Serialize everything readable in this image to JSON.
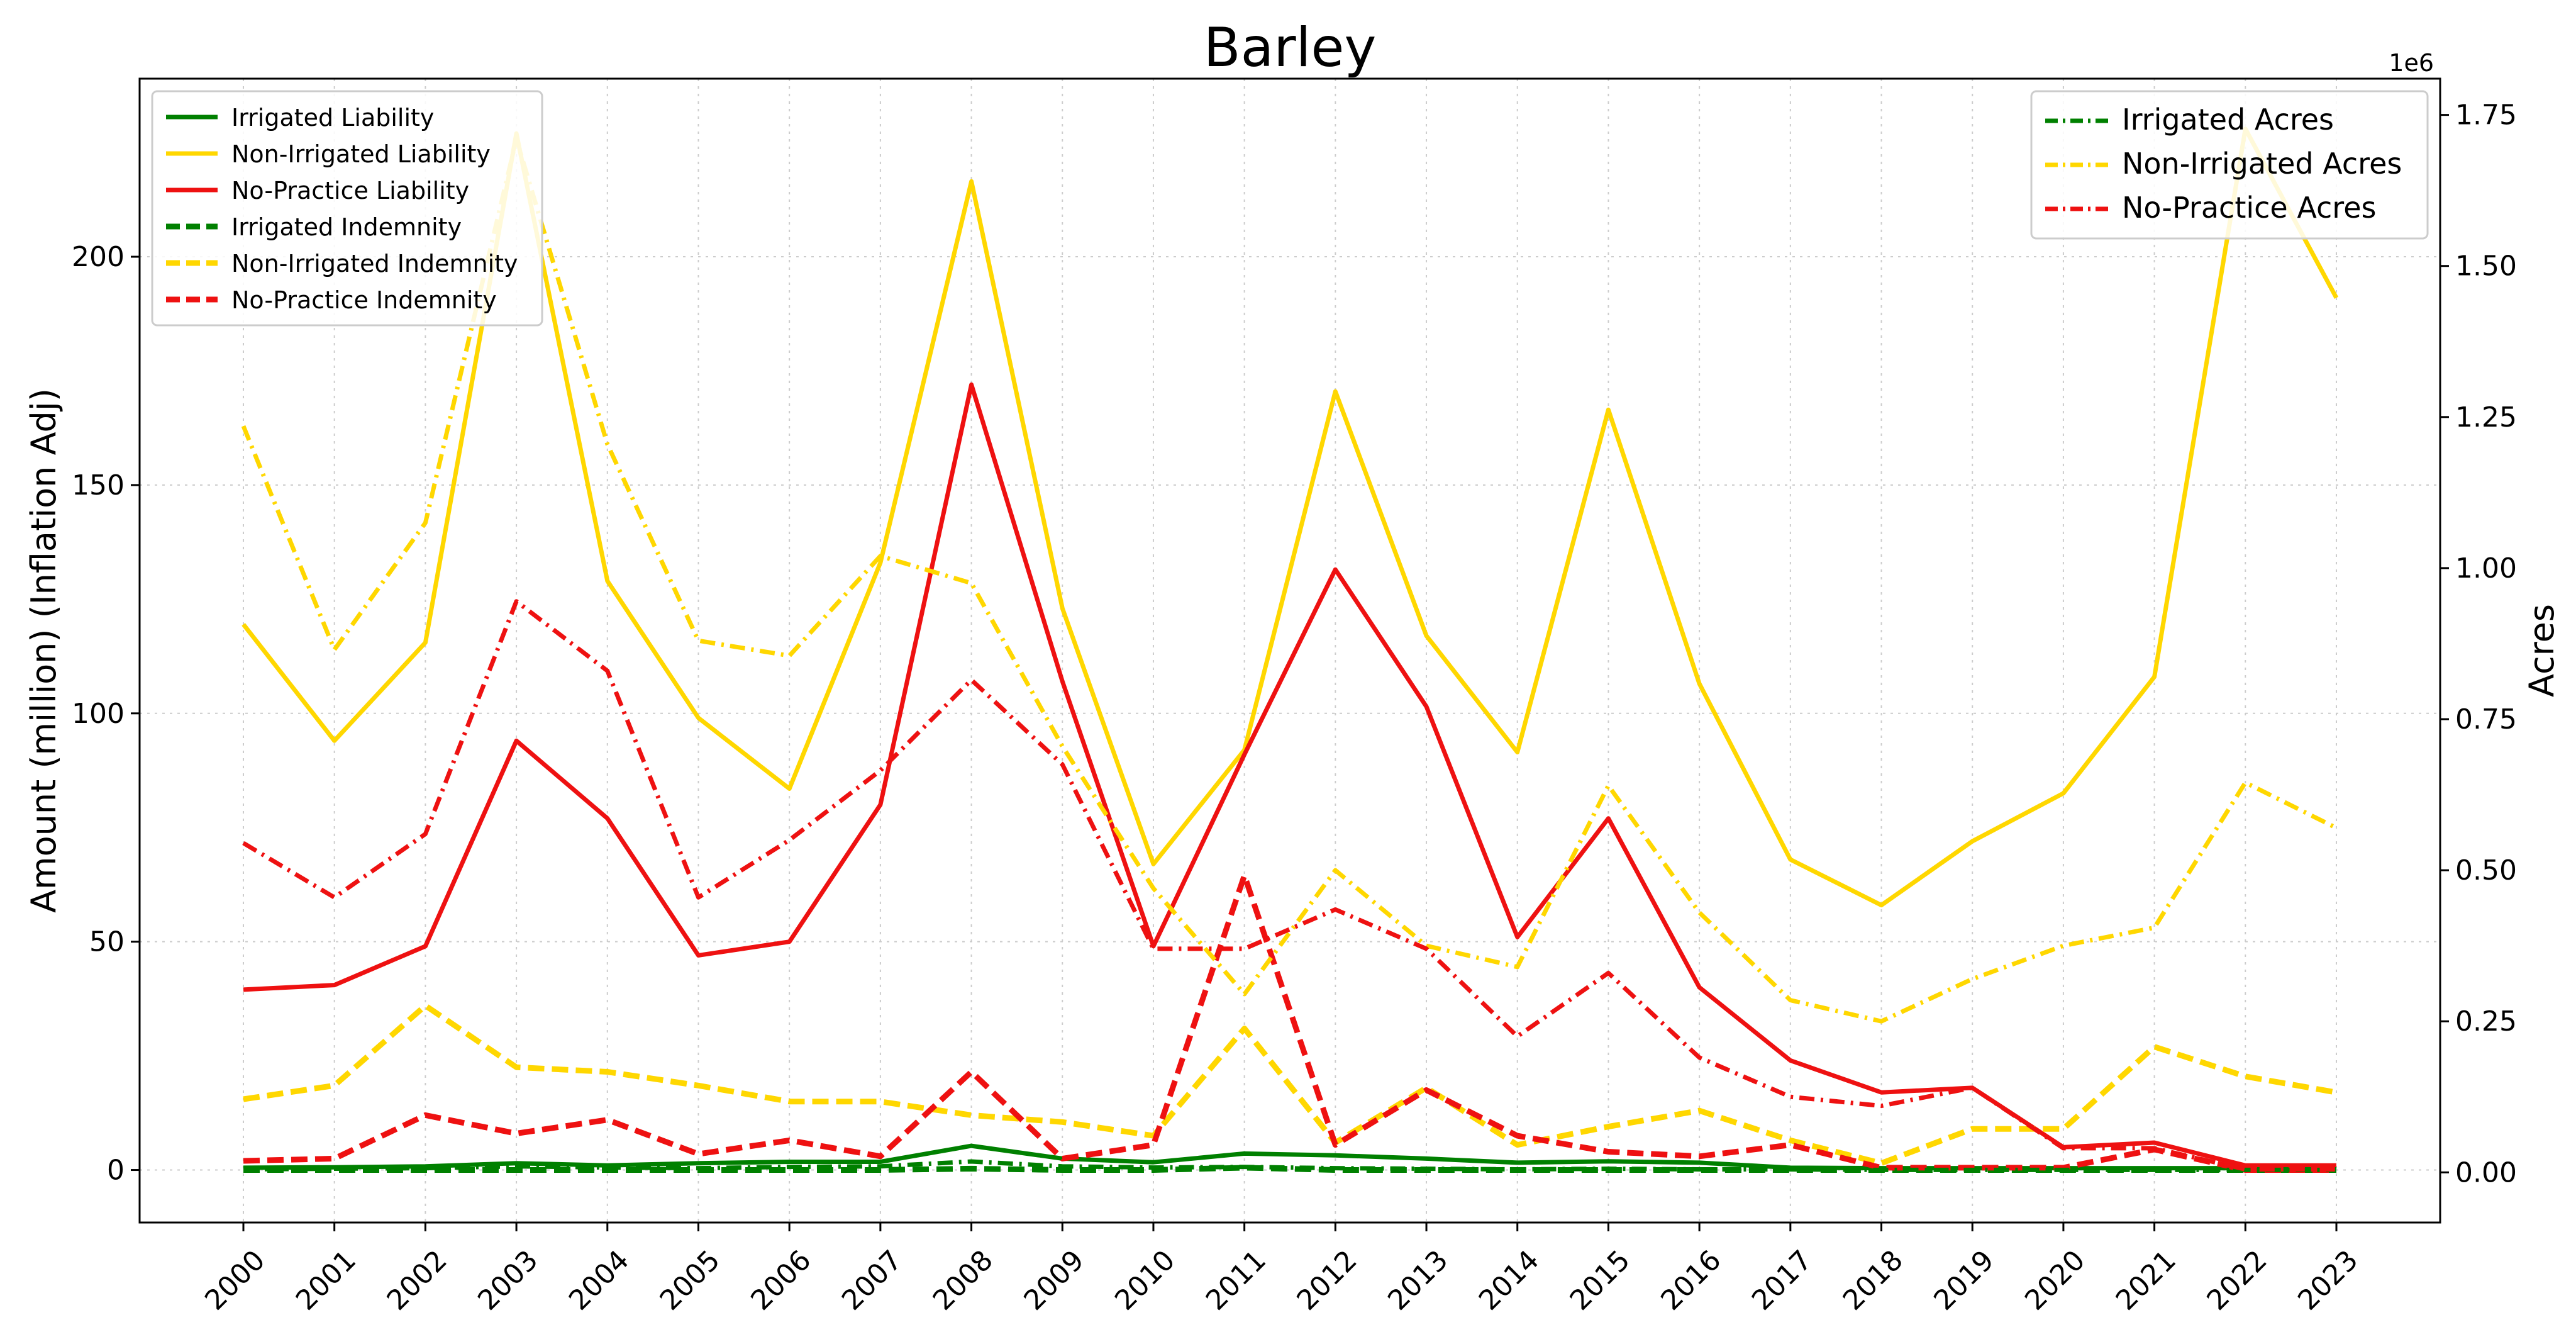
{
  "chart_data": {
    "type": "line",
    "title": "Barley",
    "xlabel": "",
    "ylabel_left": "Amount (million) (Inflation Adj)",
    "ylabel_right": "Acres",
    "right_axis_offset_label": "1e6",
    "x": [
      2000,
      2001,
      2002,
      2003,
      2004,
      2005,
      2006,
      2007,
      2008,
      2009,
      2010,
      2011,
      2012,
      2013,
      2014,
      2015,
      2016,
      2017,
      2018,
      2019,
      2020,
      2021,
      2022,
      2023
    ],
    "x_tick_labels": [
      "2000",
      "2001",
      "2002",
      "2003",
      "2004",
      "2005",
      "2006",
      "2007",
      "2008",
      "2009",
      "2010",
      "2011",
      "2012",
      "2013",
      "2014",
      "2015",
      "2016",
      "2017",
      "2018",
      "2019",
      "2020",
      "2021",
      "2022",
      "2023"
    ],
    "ylim_left": [
      -11.5,
      239
    ],
    "yticks_left": [
      0,
      50,
      100,
      150,
      200
    ],
    "yticks_left_labels": [
      "0",
      "50",
      "100",
      "150",
      "200"
    ],
    "ylim_right": [
      -83000,
      1810000
    ],
    "yticks_right": [
      0,
      250000,
      500000,
      750000,
      1000000,
      1250000,
      1500000,
      1750000
    ],
    "yticks_right_labels": [
      "0.00",
      "0.25",
      "0.50",
      "0.75",
      "1.00",
      "1.25",
      "1.50",
      "1.75"
    ],
    "grid": true,
    "legend_left_placement": "upper-left",
    "legend_right_placement": "upper-right",
    "series_left": [
      {
        "name": "Irrigated Liability",
        "color": "#008000",
        "style": "solid",
        "values": [
          0.5,
          0.6,
          0.8,
          1.5,
          1.0,
          1.5,
          1.8,
          1.8,
          5.3,
          2.5,
          1.7,
          3.6,
          3.2,
          2.5,
          1.6,
          1.9,
          1.6,
          0.5,
          0.4,
          0.4,
          0.4,
          0.4,
          0.4,
          0.4
        ]
      },
      {
        "name": "Non-Irrigated Liability",
        "color": "#FFD700",
        "style": "solid",
        "values": [
          119.5,
          94,
          115.5,
          227,
          129,
          99,
          83.5,
          133,
          216.5,
          123,
          67,
          92,
          170.5,
          117,
          91.5,
          166.5,
          106.5,
          68,
          58,
          72,
          82.5,
          108,
          228,
          191
        ]
      },
      {
        "name": "No-Practice Liability",
        "color": "#EE1111",
        "style": "solid",
        "values": [
          39.5,
          40.5,
          49,
          94,
          77,
          47,
          50,
          80,
          172,
          107,
          49,
          91,
          131.5,
          101.5,
          51,
          77,
          40,
          24,
          17,
          18,
          5,
          6,
          1,
          1
        ]
      },
      {
        "name": "Irrigated Indemnity",
        "color": "#008000",
        "style": "dashed",
        "values": [
          0,
          0,
          0,
          0,
          0,
          0,
          0,
          0,
          0.3,
          0,
          0,
          0.5,
          0,
          0,
          0,
          0,
          0,
          0,
          0,
          0,
          0,
          0,
          0,
          0
        ]
      },
      {
        "name": "Non-Irrigated Indemnity",
        "color": "#FFD700",
        "style": "dashed",
        "values": [
          15.5,
          18.5,
          36,
          22.5,
          21.5,
          18.5,
          15,
          15,
          12,
          10.5,
          7.5,
          31,
          6,
          18,
          5.5,
          9.5,
          13,
          6.5,
          1.5,
          9,
          9,
          27,
          20.5,
          17
        ]
      },
      {
        "name": "No-Practice Indemnity",
        "color": "#EE1111",
        "style": "dashed",
        "values": [
          2,
          2.5,
          12,
          8,
          11,
          3.5,
          6.5,
          3,
          21.5,
          2.5,
          5.5,
          64.5,
          5.5,
          17.5,
          7.5,
          4,
          3,
          5.5,
          0.5,
          0.5,
          0.5,
          4.5,
          0,
          0
        ]
      }
    ],
    "series_right": [
      {
        "name": "Irrigated Acres",
        "color": "#008000",
        "style": "dashdot",
        "values": [
          5000,
          6000,
          7000,
          10000,
          8000,
          7000,
          9000,
          10000,
          18000,
          10000,
          8000,
          9000,
          7000,
          6000,
          5000,
          6000,
          5000,
          5000,
          4000,
          4000,
          4000,
          4000,
          4000,
          4000
        ]
      },
      {
        "name": "Non-Irrigated Acres",
        "color": "#FFD700",
        "style": "dashdot",
        "values": [
          1235000,
          865000,
          1075000,
          1710000,
          1205000,
          880000,
          855000,
          1020000,
          975000,
          705000,
          470000,
          295000,
          500000,
          375000,
          340000,
          640000,
          430000,
          285000,
          250000,
          320000,
          375000,
          405000,
          645000,
          570000
        ]
      },
      {
        "name": "No-Practice Acres",
        "color": "#EE1111",
        "style": "dashdot",
        "values": [
          545000,
          455000,
          560000,
          945000,
          830000,
          455000,
          550000,
          665000,
          815000,
          675000,
          370000,
          370000,
          435000,
          370000,
          225000,
          330000,
          190000,
          125000,
          110000,
          140000,
          40000,
          40000,
          5000,
          5000
        ]
      }
    ]
  }
}
